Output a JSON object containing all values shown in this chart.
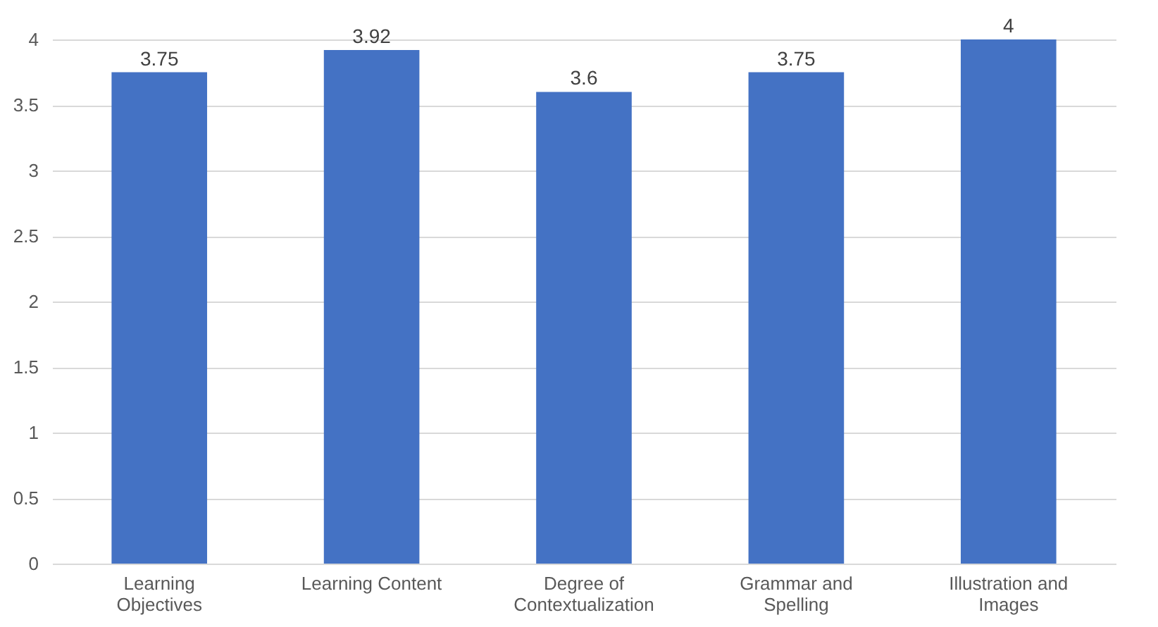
{
  "chart_data": {
    "type": "bar",
    "categories": [
      "Learning Objectives",
      "Learning Content",
      "Degree of Contextualization",
      "Grammar and Spelling",
      "Illustration and Images"
    ],
    "values": [
      3.75,
      3.92,
      3.6,
      3.75,
      4
    ],
    "color": "#4472c4",
    "ylim": [
      0,
      4
    ],
    "yticks": [
      0,
      0.5,
      1,
      1.5,
      2,
      2.5,
      3,
      3.5,
      4
    ],
    "grid": "y",
    "data_labels": true
  }
}
